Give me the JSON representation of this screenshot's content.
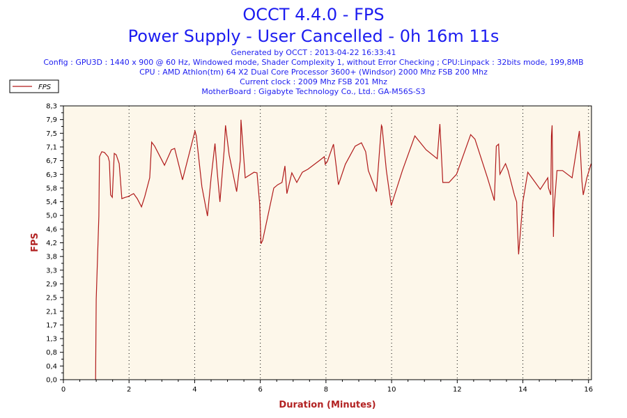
{
  "header": {
    "title_line1": "OCCT 4.4.0 - FPS",
    "title_line2": "Power Supply - User Cancelled - 0h 16m 11s",
    "info_lines": [
      "Generated by OCCT : 2013-04-22 16:33:41",
      "Config : GPU3D : 1440 x 900 @ 60 Hz, Windowed mode, Shader Complexity 1, without Error Checking ; CPU:Linpack : 32bits mode, 199,8MB",
      "CPU : AMD Athlon(tm) 64 X2 Dual Core Processor 3600+ (Windsor) 2000 Mhz FSB 200 Mhz",
      "Current clock : 2009 Mhz FSB 201 Mhz",
      "MotherBoard : Gigabyte Technology Co., Ltd.: GA-M56S-S3"
    ]
  },
  "colors": {
    "title": "#1c1cf0",
    "line": "#b01a1a",
    "plot_bg": "#fdf7ea",
    "axis_label": "#b22222"
  },
  "chart_data": {
    "type": "line",
    "title": "OCCT 4.4.0 - FPS",
    "xlabel": "Duration (Minutes)",
    "ylabel": "FPS",
    "xlim": [
      0,
      16.09
    ],
    "ylim": [
      0,
      8.3
    ],
    "x_ticks": [
      "0",
      "2",
      "4",
      "6",
      "8",
      "10",
      "12",
      "14",
      "16"
    ],
    "y_ticks": [
      "0,0",
      "0,4",
      "0,8",
      "1,3",
      "1,7",
      "2,1",
      "2,5",
      "2,9",
      "3,3",
      "3,8",
      "4,2",
      "4,6",
      "5,0",
      "5,4",
      "5,8",
      "6,3",
      "6,7",
      "7,1",
      "7,5",
      "7,9",
      "8,3"
    ],
    "grid": "vertical dotted",
    "legend": {
      "position": "top-left",
      "entries": [
        "FPS"
      ]
    },
    "series": [
      {
        "name": "FPS",
        "x": [
          0.98,
          1.0,
          1.08,
          1.1,
          1.17,
          1.25,
          1.36,
          1.4,
          1.44,
          1.49,
          1.55,
          1.61,
          1.7,
          1.78,
          1.89,
          1.97,
          2.14,
          2.25,
          2.38,
          2.48,
          2.63,
          2.69,
          2.78,
          3.08,
          3.29,
          3.39,
          3.63,
          4.01,
          4.05,
          4.22,
          4.39,
          4.5,
          4.62,
          4.69,
          4.77,
          4.9,
          4.94,
          5.05,
          5.28,
          5.39,
          5.41,
          5.54,
          5.81,
          5.9,
          5.98,
          6.02,
          6.07,
          6.41,
          6.53,
          6.66,
          6.75,
          6.81,
          6.96,
          7.11,
          7.28,
          7.45,
          7.81,
          7.95,
          7.98,
          8.04,
          8.23,
          8.38,
          8.59,
          8.89,
          9.08,
          9.21,
          9.29,
          9.54,
          9.69,
          9.71,
          9.84,
          9.99,
          10.33,
          10.71,
          11.05,
          11.39,
          11.47,
          11.56,
          11.75,
          11.98,
          12.41,
          12.54,
          12.92,
          13.13,
          13.19,
          13.26,
          13.3,
          13.47,
          13.55,
          13.74,
          13.81,
          13.83,
          13.87,
          14.0,
          14.15,
          14.32,
          14.53,
          14.76,
          14.78,
          14.85,
          14.87,
          14.89,
          14.93,
          14.95,
          15.04,
          15.21,
          15.5,
          15.65,
          15.72,
          15.8,
          15.84,
          15.95,
          16.08
        ],
        "y": [
          0,
          2.43,
          4.96,
          6.76,
          6.91,
          6.89,
          6.76,
          6.61,
          5.6,
          5.53,
          6.86,
          6.82,
          6.55,
          5.49,
          5.53,
          5.55,
          5.64,
          5.49,
          5.24,
          5.55,
          6.12,
          7.2,
          7.08,
          6.5,
          6.97,
          7.01,
          6.06,
          7.54,
          7.39,
          5.85,
          4.96,
          6.12,
          7.16,
          6.27,
          5.39,
          6.97,
          7.71,
          6.82,
          5.7,
          6.65,
          7.88,
          6.12,
          6.29,
          6.27,
          5.34,
          4.12,
          4.22,
          5.81,
          5.91,
          5.98,
          6.48,
          5.64,
          6.27,
          5.98,
          6.29,
          6.38,
          6.65,
          6.76,
          6.53,
          6.61,
          7.14,
          5.91,
          6.53,
          7.08,
          7.18,
          6.91,
          6.34,
          5.7,
          7.71,
          7.67,
          6.34,
          5.28,
          6.34,
          7.39,
          6.97,
          6.7,
          7.75,
          5.98,
          5.98,
          6.23,
          7.43,
          7.29,
          6.12,
          5.43,
          7.08,
          7.14,
          6.23,
          6.55,
          6.34,
          5.6,
          5.39,
          4.75,
          3.8,
          5.39,
          6.29,
          6.06,
          5.77,
          6.12,
          5.81,
          5.6,
          7.39,
          7.71,
          4.33,
          5.17,
          6.34,
          6.34,
          6.12,
          7.08,
          7.54,
          6.02,
          5.6,
          6.12,
          6.55
        ]
      }
    ]
  }
}
